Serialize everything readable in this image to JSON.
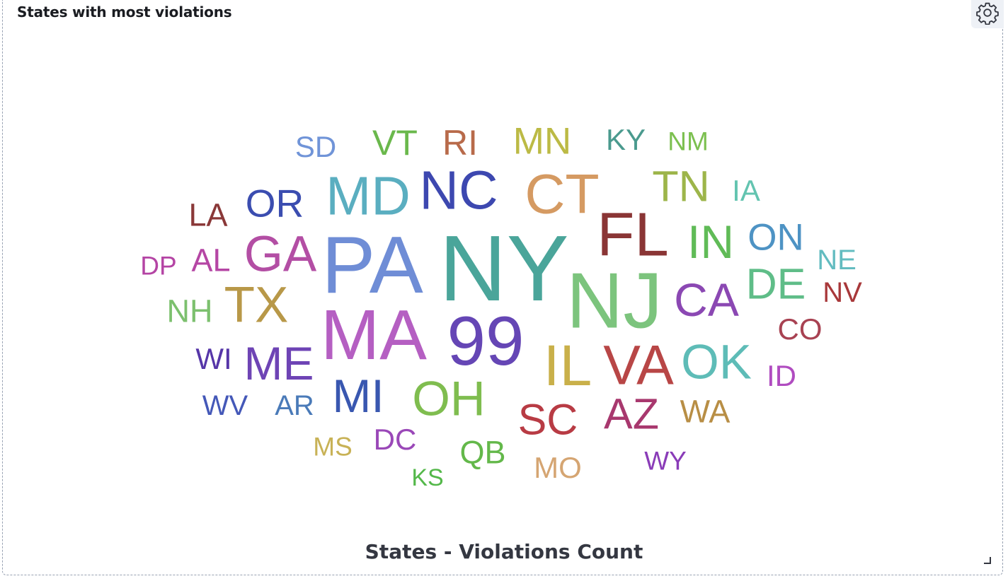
{
  "panel": {
    "title": "States with most violations"
  },
  "settings": {
    "icon": "gear-icon"
  },
  "chart_data": {
    "type": "wordcloud",
    "xlabel": "States - Violations Count",
    "words": [
      {
        "text": "NY",
        "weight": 100,
        "color": "#4aa59a"
      },
      {
        "text": "PA",
        "weight": 86,
        "color": "#6f8dd6"
      },
      {
        "text": "NJ",
        "weight": 84,
        "color": "#7cc47d"
      },
      {
        "text": "MA",
        "weight": 76,
        "color": "#b55fc2"
      },
      {
        "text": "99",
        "weight": 74,
        "color": "#6546b5"
      },
      {
        "text": "FL",
        "weight": 66,
        "color": "#8a3535"
      },
      {
        "text": "IL",
        "weight": 62,
        "color": "#c9b04a"
      },
      {
        "text": "VA",
        "weight": 60,
        "color": "#b84646"
      },
      {
        "text": "CT",
        "weight": 60,
        "color": "#d59a62"
      },
      {
        "text": "MD",
        "weight": 58,
        "color": "#5aaec0"
      },
      {
        "text": "NC",
        "weight": 58,
        "color": "#3d48b0"
      },
      {
        "text": "GA",
        "weight": 54,
        "color": "#b34ea4"
      },
      {
        "text": "TX",
        "weight": 54,
        "color": "#b89848"
      },
      {
        "text": "OK",
        "weight": 52,
        "color": "#5ebcb7"
      },
      {
        "text": "OH",
        "weight": 52,
        "color": "#7fbd4f"
      },
      {
        "text": "CA",
        "weight": 50,
        "color": "#8b48b3"
      },
      {
        "text": "MI",
        "weight": 50,
        "color": "#3957b0"
      },
      {
        "text": "ME",
        "weight": 50,
        "color": "#6e44b5"
      },
      {
        "text": "IN",
        "weight": 50,
        "color": "#60bb57"
      },
      {
        "text": "DE",
        "weight": 46,
        "color": "#5fbd88"
      },
      {
        "text": "TN",
        "weight": 46,
        "color": "#9db54a"
      },
      {
        "text": "AZ",
        "weight": 46,
        "color": "#a8386e"
      },
      {
        "text": "SC",
        "weight": 46,
        "color": "#b83b44"
      },
      {
        "text": "OR",
        "weight": 42,
        "color": "#3b4db0"
      },
      {
        "text": "ON",
        "weight": 40,
        "color": "#4e93c4"
      },
      {
        "text": "MN",
        "weight": 40,
        "color": "#bcba45"
      },
      {
        "text": "VT",
        "weight": 38,
        "color": "#6ab84c"
      },
      {
        "text": "RI",
        "weight": 38,
        "color": "#b86a4a"
      },
      {
        "text": "WA",
        "weight": 34,
        "color": "#b88e45"
      },
      {
        "text": "QB",
        "weight": 34,
        "color": "#63b84a"
      },
      {
        "text": "AL",
        "weight": 34,
        "color": "#b546a4"
      },
      {
        "text": "NH",
        "weight": 34,
        "color": "#7cc06e"
      },
      {
        "text": "LA",
        "weight": 34,
        "color": "#8a3838"
      },
      {
        "text": "KY",
        "weight": 32,
        "color": "#4a9a8e"
      },
      {
        "text": "WI",
        "weight": 32,
        "color": "#5636a8"
      },
      {
        "text": "CO",
        "weight": 32,
        "color": "#a84252"
      },
      {
        "text": "SD",
        "weight": 32,
        "color": "#7094d8"
      },
      {
        "text": "DC",
        "weight": 32,
        "color": "#9a48b8"
      },
      {
        "text": "MO",
        "weight": 32,
        "color": "#d5a572"
      },
      {
        "text": "ID",
        "weight": 32,
        "color": "#b04cc0"
      },
      {
        "text": "IA",
        "weight": 32,
        "color": "#63c4b0"
      },
      {
        "text": "NV",
        "weight": 30,
        "color": "#a8383a"
      },
      {
        "text": "NE",
        "weight": 30,
        "color": "#63bcc0"
      },
      {
        "text": "WV",
        "weight": 30,
        "color": "#4458b8"
      },
      {
        "text": "AR",
        "weight": 30,
        "color": "#4a7ab8"
      },
      {
        "text": "DP",
        "weight": 28,
        "color": "#b444a4"
      },
      {
        "text": "NM",
        "weight": 28,
        "color": "#7cc050"
      },
      {
        "text": "MS",
        "weight": 28,
        "color": "#c8b256"
      },
      {
        "text": "WY",
        "weight": 28,
        "color": "#8a3cb8"
      },
      {
        "text": "KS",
        "weight": 26,
        "color": "#54b84a"
      }
    ]
  }
}
